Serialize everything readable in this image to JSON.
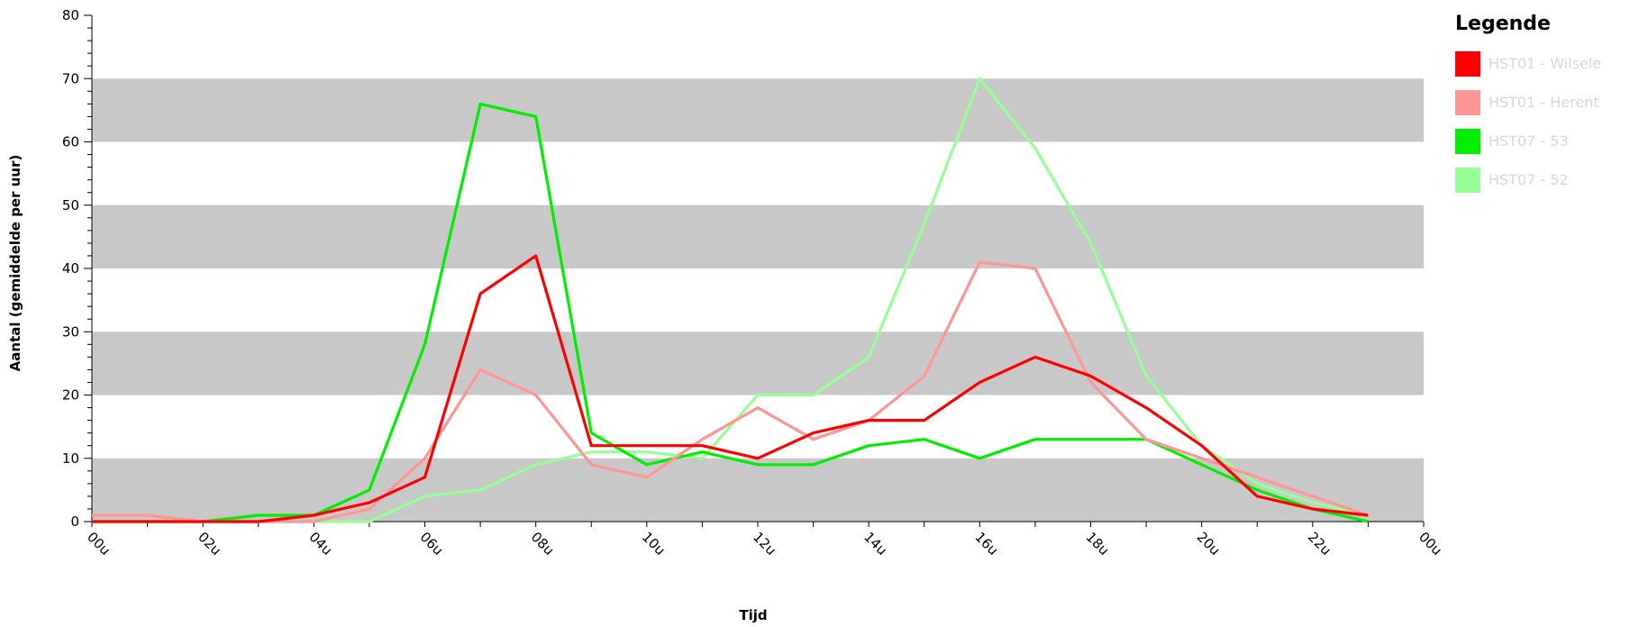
{
  "chart_data": {
    "type": "line",
    "xlabel": "Tijd",
    "ylabel": "Aantal (gemiddelde per uur)",
    "x_tick_labels": [
      "00u",
      "02u",
      "04u",
      "06u",
      "08u",
      "10u",
      "12u",
      "14u",
      "16u",
      "18u",
      "20u",
      "22u",
      "00u"
    ],
    "y_ticks": [
      0,
      10,
      20,
      30,
      40,
      50,
      60,
      70,
      80
    ],
    "ylim": [
      0,
      80
    ],
    "xlim": [
      0,
      24
    ],
    "grid": "alternating horizontal bands",
    "band_color": "#c8c8c8",
    "x": [
      0,
      1,
      2,
      3,
      4,
      5,
      6,
      7,
      8,
      9,
      10,
      11,
      12,
      13,
      14,
      15,
      16,
      17,
      18,
      19,
      20,
      21,
      22,
      23
    ],
    "legend_title": "Legende",
    "legend_position": "right",
    "series": [
      {
        "name": "HST01 - Wilsele",
        "color": "#ff0000",
        "opacity": 1.0,
        "values": [
          0,
          0,
          0,
          0,
          1,
          3,
          7,
          36,
          42,
          12,
          12,
          12,
          10,
          14,
          16,
          16,
          22,
          26,
          23,
          18,
          12,
          4,
          2,
          1
        ]
      },
      {
        "name": "HST01 - Herent",
        "color": "#ff9696",
        "opacity": 1.0,
        "values": [
          1,
          1,
          0,
          0,
          0,
          2,
          10,
          24,
          20,
          9,
          7,
          13,
          18,
          13,
          16,
          23,
          41,
          40,
          22,
          13,
          10,
          7,
          4,
          1
        ]
      },
      {
        "name": "HST07 - 53",
        "color": "#00ee00",
        "opacity": 1.0,
        "values": [
          0,
          0,
          0,
          1,
          1,
          5,
          28,
          66,
          64,
          14,
          9,
          11,
          9,
          9,
          12,
          13,
          10,
          13,
          13,
          13,
          9,
          5,
          2,
          0
        ]
      },
      {
        "name": "HST07 - 52",
        "color": "#96ff96",
        "opacity": 1.0,
        "values": [
          0,
          0,
          0,
          0,
          0,
          0,
          4,
          5,
          9,
          11,
          11,
          10,
          20,
          20,
          26,
          47,
          70,
          59,
          44,
          23,
          12,
          6,
          3,
          1
        ]
      }
    ]
  }
}
